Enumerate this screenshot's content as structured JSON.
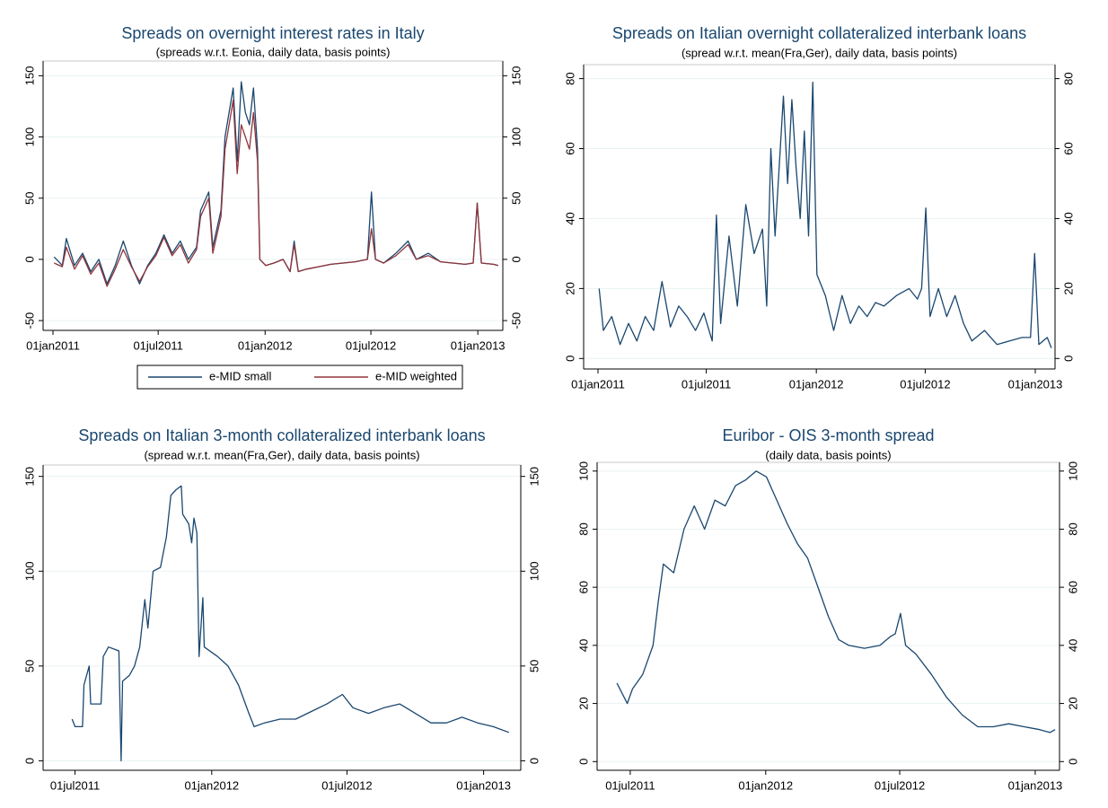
{
  "chart_data": [
    {
      "type": "line",
      "title": "Spreads on overnight interest rates in Italy",
      "subtitle": "(spreads w.r.t. Eonia, daily data, basis points)",
      "x": [
        "2011-01-03",
        "2011-01-17",
        "2011-01-24",
        "2011-02-07",
        "2011-02-21",
        "2011-03-07",
        "2011-03-21",
        "2011-04-04",
        "2011-04-18",
        "2011-05-02",
        "2011-05-16",
        "2011-05-30",
        "2011-06-13",
        "2011-06-27",
        "2011-07-11",
        "2011-07-25",
        "2011-08-08",
        "2011-08-22",
        "2011-09-05",
        "2011-09-12",
        "2011-09-26",
        "2011-10-03",
        "2011-10-17",
        "2011-10-24",
        "2011-11-07",
        "2011-11-14",
        "2011-11-21",
        "2011-11-28",
        "2011-12-05",
        "2011-12-12",
        "2011-12-19",
        "2011-12-23",
        "2012-01-02",
        "2012-01-16",
        "2012-02-01",
        "2012-02-13",
        "2012-02-20",
        "2012-02-27",
        "2012-03-12",
        "2012-04-02",
        "2012-04-23",
        "2012-05-14",
        "2012-06-04",
        "2012-06-25",
        "2012-07-02",
        "2012-07-09",
        "2012-07-23",
        "2012-08-13",
        "2012-09-03",
        "2012-09-17",
        "2012-10-08",
        "2012-10-29",
        "2012-11-19",
        "2012-12-10",
        "2012-12-24",
        "2012-12-31",
        "2013-01-07",
        "2013-01-28",
        "2013-02-05"
      ],
      "series": [
        {
          "name": "e-MID small",
          "color": "#1a476f",
          "values": [
            2,
            -5,
            17,
            -5,
            5,
            -10,
            0,
            -20,
            -5,
            15,
            -5,
            -20,
            -5,
            5,
            20,
            5,
            15,
            0,
            10,
            40,
            55,
            10,
            40,
            100,
            140,
            80,
            145,
            120,
            110,
            140,
            90,
            0,
            -5,
            -3,
            0,
            -10,
            15,
            -10,
            -8,
            -6,
            -4,
            -3,
            -2,
            0,
            55,
            0,
            -3,
            5,
            15,
            0,
            5,
            -2,
            -3,
            -4,
            -3,
            46,
            -3,
            -4,
            -5
          ]
        },
        {
          "name": "e-MID weighted",
          "color": "#90353b",
          "values": [
            -3,
            -6,
            10,
            -8,
            3,
            -12,
            -3,
            -22,
            -8,
            8,
            -6,
            -18,
            -6,
            3,
            18,
            3,
            12,
            -3,
            8,
            35,
            50,
            5,
            35,
            90,
            130,
            70,
            110,
            100,
            90,
            120,
            80,
            0,
            -5,
            -3,
            0,
            -10,
            12,
            -10,
            -8,
            -6,
            -4,
            -3,
            -2,
            0,
            25,
            0,
            -3,
            3,
            12,
            0,
            3,
            -2,
            -3,
            -4,
            -3,
            46,
            -3,
            -4,
            -5
          ]
        }
      ],
      "xlim": [
        "2010-12-15",
        "2013-02-13"
      ],
      "xticks": [
        {
          "value": "2011-01-01",
          "label": "01jan2011"
        },
        {
          "value": "2011-07-01",
          "label": "01jul2011"
        },
        {
          "value": "2012-01-01",
          "label": "01jan2012"
        },
        {
          "value": "2012-07-01",
          "label": "01jul2012"
        },
        {
          "value": "2013-01-01",
          "label": "01jan2013"
        }
      ],
      "ylim": [
        -58,
        162
      ],
      "yticks": [
        -50,
        0,
        50,
        100,
        150
      ],
      "y2lim": [
        -58,
        162
      ],
      "y2ticks": [
        -50,
        0,
        50,
        100,
        150
      ],
      "grid": true,
      "legend": "bottom"
    },
    {
      "type": "line",
      "title": "Spreads on Italian overnight collateralized interbank loans",
      "subtitle": "(spread w.r.t. mean(Fra,Ger), daily data, basis points)",
      "x": [
        "2011-01-03",
        "2011-01-10",
        "2011-01-24",
        "2011-02-07",
        "2011-02-21",
        "2011-03-07",
        "2011-03-21",
        "2011-04-04",
        "2011-04-18",
        "2011-05-02",
        "2011-05-16",
        "2011-05-30",
        "2011-06-13",
        "2011-06-27",
        "2011-07-11",
        "2011-07-18",
        "2011-07-25",
        "2011-08-08",
        "2011-08-22",
        "2011-09-05",
        "2011-09-19",
        "2011-10-03",
        "2011-10-10",
        "2011-10-17",
        "2011-10-24",
        "2011-11-07",
        "2011-11-14",
        "2011-11-21",
        "2011-11-28",
        "2011-12-05",
        "2011-12-12",
        "2011-12-19",
        "2011-12-26",
        "2012-01-02",
        "2012-01-16",
        "2012-01-30",
        "2012-02-13",
        "2012-02-27",
        "2012-03-12",
        "2012-03-26",
        "2012-04-09",
        "2012-04-23",
        "2012-05-14",
        "2012-06-04",
        "2012-06-18",
        "2012-06-25",
        "2012-07-02",
        "2012-07-09",
        "2012-07-23",
        "2012-08-06",
        "2012-08-20",
        "2012-09-03",
        "2012-09-17",
        "2012-10-08",
        "2012-10-29",
        "2012-11-19",
        "2012-12-10",
        "2012-12-24",
        "2012-12-31",
        "2013-01-07",
        "2013-01-21",
        "2013-01-28"
      ],
      "series": [
        {
          "color": "#1a476f",
          "values": [
            20,
            8,
            12,
            4,
            10,
            5,
            12,
            8,
            22,
            9,
            15,
            12,
            8,
            13,
            5,
            41,
            10,
            35,
            15,
            44,
            30,
            37,
            15,
            60,
            35,
            75,
            50,
            74,
            55,
            40,
            65,
            35,
            79,
            24,
            18,
            8,
            18,
            10,
            15,
            12,
            16,
            15,
            18,
            20,
            17,
            20,
            43,
            12,
            20,
            12,
            18,
            10,
            5,
            8,
            4,
            5,
            6,
            6,
            30,
            4,
            6,
            3
          ]
        }
      ],
      "xlim": [
        "2010-12-08",
        "2013-02-03"
      ],
      "xticks": [
        {
          "value": "2011-01-01",
          "label": "01jan2011"
        },
        {
          "value": "2011-07-01",
          "label": "01jul2011"
        },
        {
          "value": "2012-01-01",
          "label": "01jan2012"
        },
        {
          "value": "2012-07-01",
          "label": "01jul2012"
        },
        {
          "value": "2013-01-01",
          "label": "01jan2013"
        }
      ],
      "ylim": [
        -3,
        84
      ],
      "yticks": [
        0,
        20,
        40,
        60,
        80
      ],
      "y2lim": [
        -3,
        84
      ],
      "y2ticks": [
        0,
        20,
        40,
        60,
        80
      ],
      "grid": true
    },
    {
      "type": "line",
      "title": "Spreads on Italian 3-month collateralized interbank loans",
      "subtitle": "(spread w.r.t. mean(Fra,Ger), daily data, basis points)",
      "x": [
        "2011-06-27",
        "2011-07-01",
        "2011-07-11",
        "2011-07-13",
        "2011-07-20",
        "2011-07-22",
        "2011-08-05",
        "2011-08-08",
        "2011-08-15",
        "2011-08-29",
        "2011-09-01",
        "2011-09-03",
        "2011-09-12",
        "2011-09-19",
        "2011-09-26",
        "2011-10-03",
        "2011-10-07",
        "2011-10-14",
        "2011-10-24",
        "2011-11-01",
        "2011-11-07",
        "2011-11-14",
        "2011-11-21",
        "2011-11-23",
        "2011-12-01",
        "2011-12-05",
        "2011-12-08",
        "2011-12-12",
        "2011-12-15",
        "2011-12-20",
        "2011-12-22",
        "2012-01-09",
        "2012-01-23",
        "2012-02-06",
        "2012-02-20",
        "2012-02-27",
        "2012-03-12",
        "2012-04-02",
        "2012-04-23",
        "2012-05-14",
        "2012-06-04",
        "2012-06-25",
        "2012-07-09",
        "2012-07-30",
        "2012-08-20",
        "2012-09-10",
        "2012-10-01",
        "2012-10-22",
        "2012-11-12",
        "2012-12-03",
        "2012-12-24",
        "2013-01-14",
        "2013-02-04"
      ],
      "series": [
        {
          "color": "#1a476f",
          "values": [
            22,
            18,
            18,
            40,
            50,
            30,
            30,
            55,
            60,
            58,
            0,
            42,
            45,
            50,
            60,
            85,
            70,
            100,
            102,
            118,
            140,
            143,
            145,
            130,
            125,
            115,
            128,
            120,
            55,
            86,
            60,
            55,
            50,
            40,
            25,
            18,
            20,
            22,
            22,
            26,
            30,
            35,
            28,
            25,
            28,
            30,
            25,
            20,
            20,
            23,
            20,
            18,
            15
          ]
        }
      ],
      "xlim": [
        "2011-05-19",
        "2013-02-20"
      ],
      "xticks": [
        {
          "value": "2011-07-01",
          "label": "01jul2011"
        },
        {
          "value": "2012-01-01",
          "label": "01jan2012"
        },
        {
          "value": "2012-07-01",
          "label": "01jul2012"
        },
        {
          "value": "2013-01-01",
          "label": "01jan2013"
        }
      ],
      "ylim": [
        -5,
        156
      ],
      "yticks": [
        0,
        50,
        100,
        150
      ],
      "y2lim": [
        -5,
        156
      ],
      "y2ticks": [
        0,
        50,
        100,
        150
      ],
      "grid": true
    },
    {
      "type": "line",
      "title": "Euribor - OIS 3-month spread",
      "subtitle": "(daily data, basis points)",
      "x": [
        "2011-06-13",
        "2011-06-27",
        "2011-07-04",
        "2011-07-18",
        "2011-08-01",
        "2011-08-08",
        "2011-08-15",
        "2011-08-29",
        "2011-09-12",
        "2011-09-26",
        "2011-10-10",
        "2011-10-24",
        "2011-11-07",
        "2011-11-21",
        "2011-12-05",
        "2011-12-19",
        "2012-01-02",
        "2012-01-16",
        "2012-01-30",
        "2012-02-13",
        "2012-02-27",
        "2012-03-12",
        "2012-03-26",
        "2012-04-09",
        "2012-04-23",
        "2012-05-14",
        "2012-06-04",
        "2012-06-18",
        "2012-06-25",
        "2012-07-02",
        "2012-07-09",
        "2012-07-23",
        "2012-08-13",
        "2012-09-03",
        "2012-09-24",
        "2012-10-15",
        "2012-11-05",
        "2012-11-26",
        "2012-12-17",
        "2013-01-07",
        "2013-01-21",
        "2013-01-28"
      ],
      "series": [
        {
          "color": "#1a476f",
          "values": [
            27,
            20,
            25,
            30,
            40,
            55,
            68,
            65,
            80,
            88,
            80,
            90,
            88,
            95,
            97,
            100,
            98,
            90,
            82,
            75,
            70,
            60,
            50,
            42,
            40,
            39,
            40,
            43,
            44,
            51,
            40,
            37,
            30,
            22,
            16,
            12,
            12,
            13,
            12,
            11,
            10,
            11
          ]
        }
      ],
      "xlim": [
        "2011-05-17",
        "2013-02-03"
      ],
      "xticks": [
        {
          "value": "2011-07-01",
          "label": "01jul2011"
        },
        {
          "value": "2012-01-01",
          "label": "01jan2012"
        },
        {
          "value": "2012-07-01",
          "label": "01jul2012"
        },
        {
          "value": "2013-01-01",
          "label": "01jan2013"
        }
      ],
      "ylim": [
        -3,
        103
      ],
      "yticks": [
        0,
        20,
        40,
        60,
        80,
        100
      ],
      "y2lim": [
        -3,
        103
      ],
      "y2ticks": [
        0,
        20,
        40,
        60,
        80,
        100
      ],
      "grid": true
    }
  ]
}
